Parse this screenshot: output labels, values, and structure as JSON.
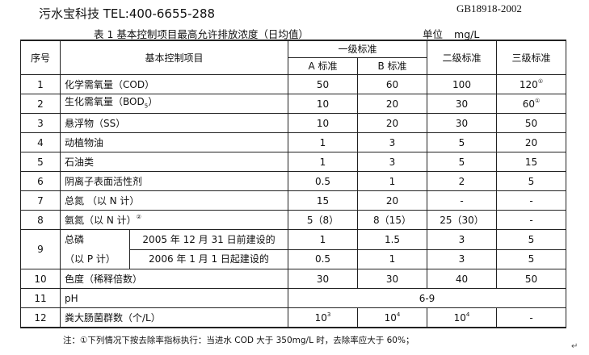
{
  "header": {
    "brand": "污水宝科技  TEL:400-6655-288",
    "standard": "GB18918-2002"
  },
  "caption": {
    "title": "表 1    基本控制项目最高允许排放浓度（日均值）",
    "unit_label": "单位",
    "unit": "mg/L"
  },
  "table": {
    "headers": {
      "no": "序号",
      "item": "基本控制项目",
      "level1": "一级标准",
      "a": "A 标准",
      "b": "B 标准",
      "level2": "二级标准",
      "level3": "三级标准"
    },
    "rows": [
      {
        "no": "1",
        "item": "化学需氧量（COD）",
        "a": "50",
        "b": "60",
        "l2": "100",
        "l3": "120",
        "l3_sup": "①"
      },
      {
        "no": "2",
        "item": "生化需氧量（BOD",
        "item_sub": "5",
        "item_end": "）",
        "a": "10",
        "b": "20",
        "l2": "30",
        "l3": "60",
        "l3_sup": "①"
      },
      {
        "no": "3",
        "item": "悬浮物（SS）",
        "a": "10",
        "b": "20",
        "l2": "30",
        "l3": "50"
      },
      {
        "no": "4",
        "item": "动植物油",
        "a": "1",
        "b": "3",
        "l2": "5",
        "l3": "20"
      },
      {
        "no": "5",
        "item": "石油类",
        "a": "1",
        "b": "3",
        "l2": "5",
        "l3": "15"
      },
      {
        "no": "6",
        "item": "阴离子表面活性剂",
        "a": "0.5",
        "b": "1",
        "l2": "2",
        "l3": "5"
      },
      {
        "no": "7",
        "item": "总氮 （以 N 计）",
        "a": "15",
        "b": "20",
        "l2": "-",
        "l3": "-"
      },
      {
        "no": "8",
        "item": "氨氮（以 N 计）",
        "item_sup": "②",
        "a": "5（8）",
        "b": "8（15）",
        "l2": "25（30）",
        "l3": "-"
      },
      {
        "no": "9",
        "item": "总磷",
        "item2": "（以 P 计）",
        "sub": [
          {
            "cond": "2005 年 12 月 31 日前建设的",
            "a": "1",
            "b": "1.5",
            "l2": "3",
            "l3": "5"
          },
          {
            "cond": "2006 年 1 月 1 日起建设的",
            "a": "0.5",
            "b": "1",
            "l2": "3",
            "l3": "5"
          }
        ]
      },
      {
        "no": "10",
        "item": "色度（稀释倍数）",
        "a": "30",
        "b": "30",
        "l2": "40",
        "l3": "50"
      },
      {
        "no": "11",
        "item": "pH",
        "value": "6-9"
      },
      {
        "no": "12",
        "item": "粪大肠菌群数（个/L）",
        "a": "10",
        "a_sup": "3",
        "b": "10",
        "b_sup": "4",
        "l2": "10",
        "l2_sup": "4",
        "l3": "-"
      }
    ]
  },
  "note": "注：①下列情况下按去除率指标执行：当进水 COD 大于 350mg/L 时，去除率应大于 60%；",
  "return_mark": "↵"
}
